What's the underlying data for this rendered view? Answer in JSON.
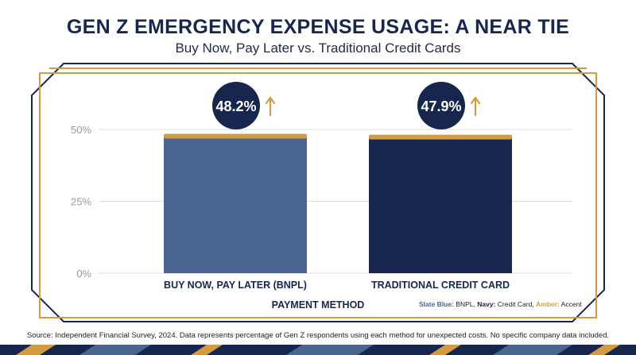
{
  "header": {
    "title": "GEN Z EMERGENCY EXPENSE USAGE: A NEAR TIE",
    "subtitle": "Buy Now, Pay Later vs. Traditional Credit Cards"
  },
  "colors": {
    "navy": "#17264d",
    "slate_blue": "#4a6590",
    "amber": "#d39a45",
    "grid": "#dcdcdc"
  },
  "chart_data": {
    "type": "bar",
    "title": "GEN Z EMERGENCY EXPENSE USAGE: A NEAR TIE",
    "subtitle": "Buy Now, Pay Later vs. Traditional Credit Cards",
    "xlabel": "PAYMENT METHOD",
    "ylabel": "",
    "ylim": [
      0,
      50
    ],
    "yticks": [
      0,
      25,
      50
    ],
    "ytick_labels": [
      "0%",
      "25%",
      "50%"
    ],
    "categories": [
      "BUY NOW, PAY LATER (BNPL)",
      "TRADITIONAL CREDIT CARD"
    ],
    "values": [
      48.2,
      47.9
    ],
    "value_labels": [
      "48.2%",
      "47.9%"
    ],
    "bar_colors": [
      "#4a6590",
      "#17264d"
    ],
    "grid": true
  },
  "legend": {
    "slate_label": "Slate Blue:",
    "slate_value": "BNPL,",
    "navy_label": "Navy:",
    "navy_value": "Credit Card,",
    "amber_label": "Amber:",
    "amber_value": "Accent"
  },
  "source": "Source: Independent Financial Survey, 2024. Data represents percentage of Gen Z respondents using each method for unexpected costs. No specific company data included."
}
